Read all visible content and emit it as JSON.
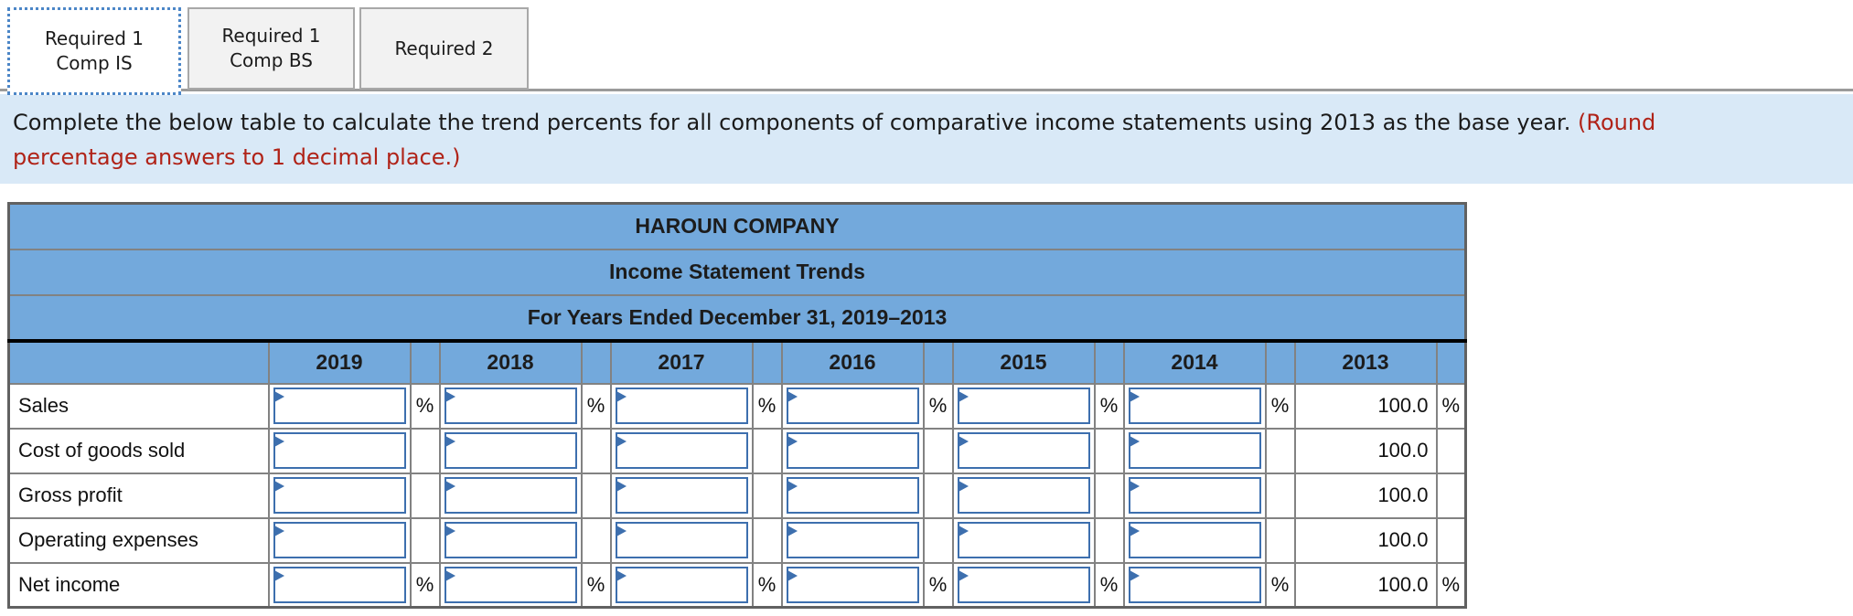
{
  "tabs": [
    {
      "line1": "Required 1",
      "line2": "Comp IS"
    },
    {
      "line1": "Required 1",
      "line2": "Comp BS"
    },
    {
      "line1": "Required 2"
    }
  ],
  "instruction": {
    "black": "Complete the below table to calculate the trend percents for all components of comparative income statements using 2013 as the base year. ",
    "red_line1": "(Round",
    "red_line2": "percentage answers to 1 decimal place.)"
  },
  "table": {
    "title_company": "HAROUN COMPANY",
    "title_statement": "Income Statement Trends",
    "title_period": "For Years Ended December 31, 2019–2013",
    "years": [
      "2019",
      "2018",
      "2017",
      "2016",
      "2015",
      "2014",
      "2013"
    ],
    "base_year": "2013",
    "percent_symbol": "%",
    "rows": [
      {
        "label": "Sales",
        "inputs": [
          "",
          "",
          "",
          "",
          "",
          ""
        ],
        "base_value": "100.0",
        "show_percent": true
      },
      {
        "label": "Cost of goods sold",
        "inputs": [
          "",
          "",
          "",
          "",
          "",
          ""
        ],
        "base_value": "100.0",
        "show_percent": false
      },
      {
        "label": "Gross profit",
        "inputs": [
          "",
          "",
          "",
          "",
          "",
          ""
        ],
        "base_value": "100.0",
        "show_percent": false
      },
      {
        "label": "Operating expenses",
        "inputs": [
          "",
          "",
          "",
          "",
          "",
          ""
        ],
        "base_value": "100.0",
        "show_percent": false
      },
      {
        "label": "Net income",
        "inputs": [
          "",
          "",
          "",
          "",
          "",
          ""
        ],
        "base_value": "100.0",
        "show_percent": true
      }
    ]
  },
  "colors": {
    "header_blue": "#73a9dc",
    "instruction_bg": "#d9e9f7",
    "red_text": "#b02318",
    "input_border": "#3d6fae",
    "grid_border": "#828282"
  }
}
